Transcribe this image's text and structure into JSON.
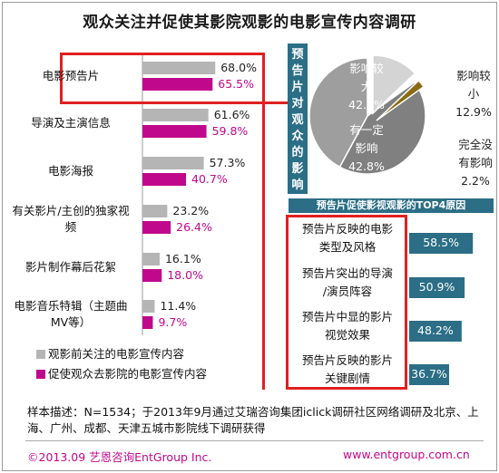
{
  "title": "观众关注并促使其影院观影的电影宣传内容调研",
  "colors": {
    "gray_series": "#b5b5b5",
    "magenta_series": "#c0088c",
    "teal": "#2b6e86",
    "highlight": "#e02020"
  },
  "chart_data": [
    {
      "type": "bar",
      "orientation": "horizontal",
      "categories": [
        "电影预告片",
        "导演及主演信息",
        "电影海报",
        "有关影片/主创的独家视频",
        "影片制作幕后花絮",
        "电影音乐特辑（主题曲MV等）"
      ],
      "category_lines": [
        [
          "电影预告片"
        ],
        [
          "导演及主演信息"
        ],
        [
          "电影海报"
        ],
        [
          "有关影片/主创的独家视",
          "频"
        ],
        [
          "影片制作幕后花絮"
        ],
        [
          "电影音乐特辑（主题曲",
          "MV等）"
        ]
      ],
      "series": [
        {
          "name": "观影前关注的电影宣传内容",
          "values": [
            68.0,
            61.6,
            57.3,
            23.2,
            16.1,
            11.4
          ],
          "labels": [
            "68.0%",
            "61.6%",
            "57.3%",
            "23.2%",
            "16.1%",
            "11.4%"
          ]
        },
        {
          "name": "促使观众去影院的电影宣传内容",
          "values": [
            65.5,
            59.8,
            40.7,
            26.4,
            18.0,
            9.7
          ],
          "labels": [
            "65.5%",
            "59.8%",
            "40.7%",
            "26.4%",
            "18.0%",
            "9.7%"
          ]
        }
      ],
      "xlim": [
        0,
        100
      ],
      "legend_position": "bottom"
    },
    {
      "type": "pie",
      "side_label": "预告片对观众的影响",
      "slices": [
        {
          "name": "影响较大",
          "value": 42.1,
          "lines": [
            "影响较",
            "大",
            "42.1%"
          ]
        },
        {
          "name": "有一定影响",
          "value": 42.8,
          "lines": [
            "有一定",
            "影响",
            "42.8%"
          ]
        },
        {
          "name": "完全没有影响",
          "value": 2.2,
          "lines": [
            "完全没",
            "有影响",
            "2.2%"
          ]
        },
        {
          "name": "影响较小",
          "value": 12.9,
          "lines": [
            "影响较",
            "小",
            "12.9%"
          ]
        }
      ]
    },
    {
      "type": "bar",
      "orientation": "horizontal",
      "title": "预告片促使影视观影的TOP4原因",
      "categories": [
        "预告片反映的电影类型及风格",
        "预告片突出的导演/演员阵容",
        "预告片中显的影片视觉效果",
        "预告片反映的影片关键剧情"
      ],
      "category_lines": [
        [
          "预告片反映的电影",
          "类型及风格"
        ],
        [
          "预告片突出的导演",
          "/演员阵容"
        ],
        [
          "预告片中显的影片",
          "视觉效果"
        ],
        [
          "预告片反映的影片",
          "关键剧情"
        ]
      ],
      "values": [
        58.5,
        50.9,
        48.2,
        36.7
      ],
      "labels": [
        "58.5%",
        "50.9%",
        "48.2%",
        "36.7%"
      ],
      "xlim": [
        0,
        100
      ]
    }
  ],
  "note": "样本描述：N=1534；于2013年9月通过艾瑞咨询集团iclick调研社区网络调研及北京、上海、广州、成都、天津五城市影院线下调研获得",
  "footer": {
    "left": "©2013.09  艺恩咨询EntGroup Inc.",
    "right": "www.entgroup.com.cn"
  }
}
